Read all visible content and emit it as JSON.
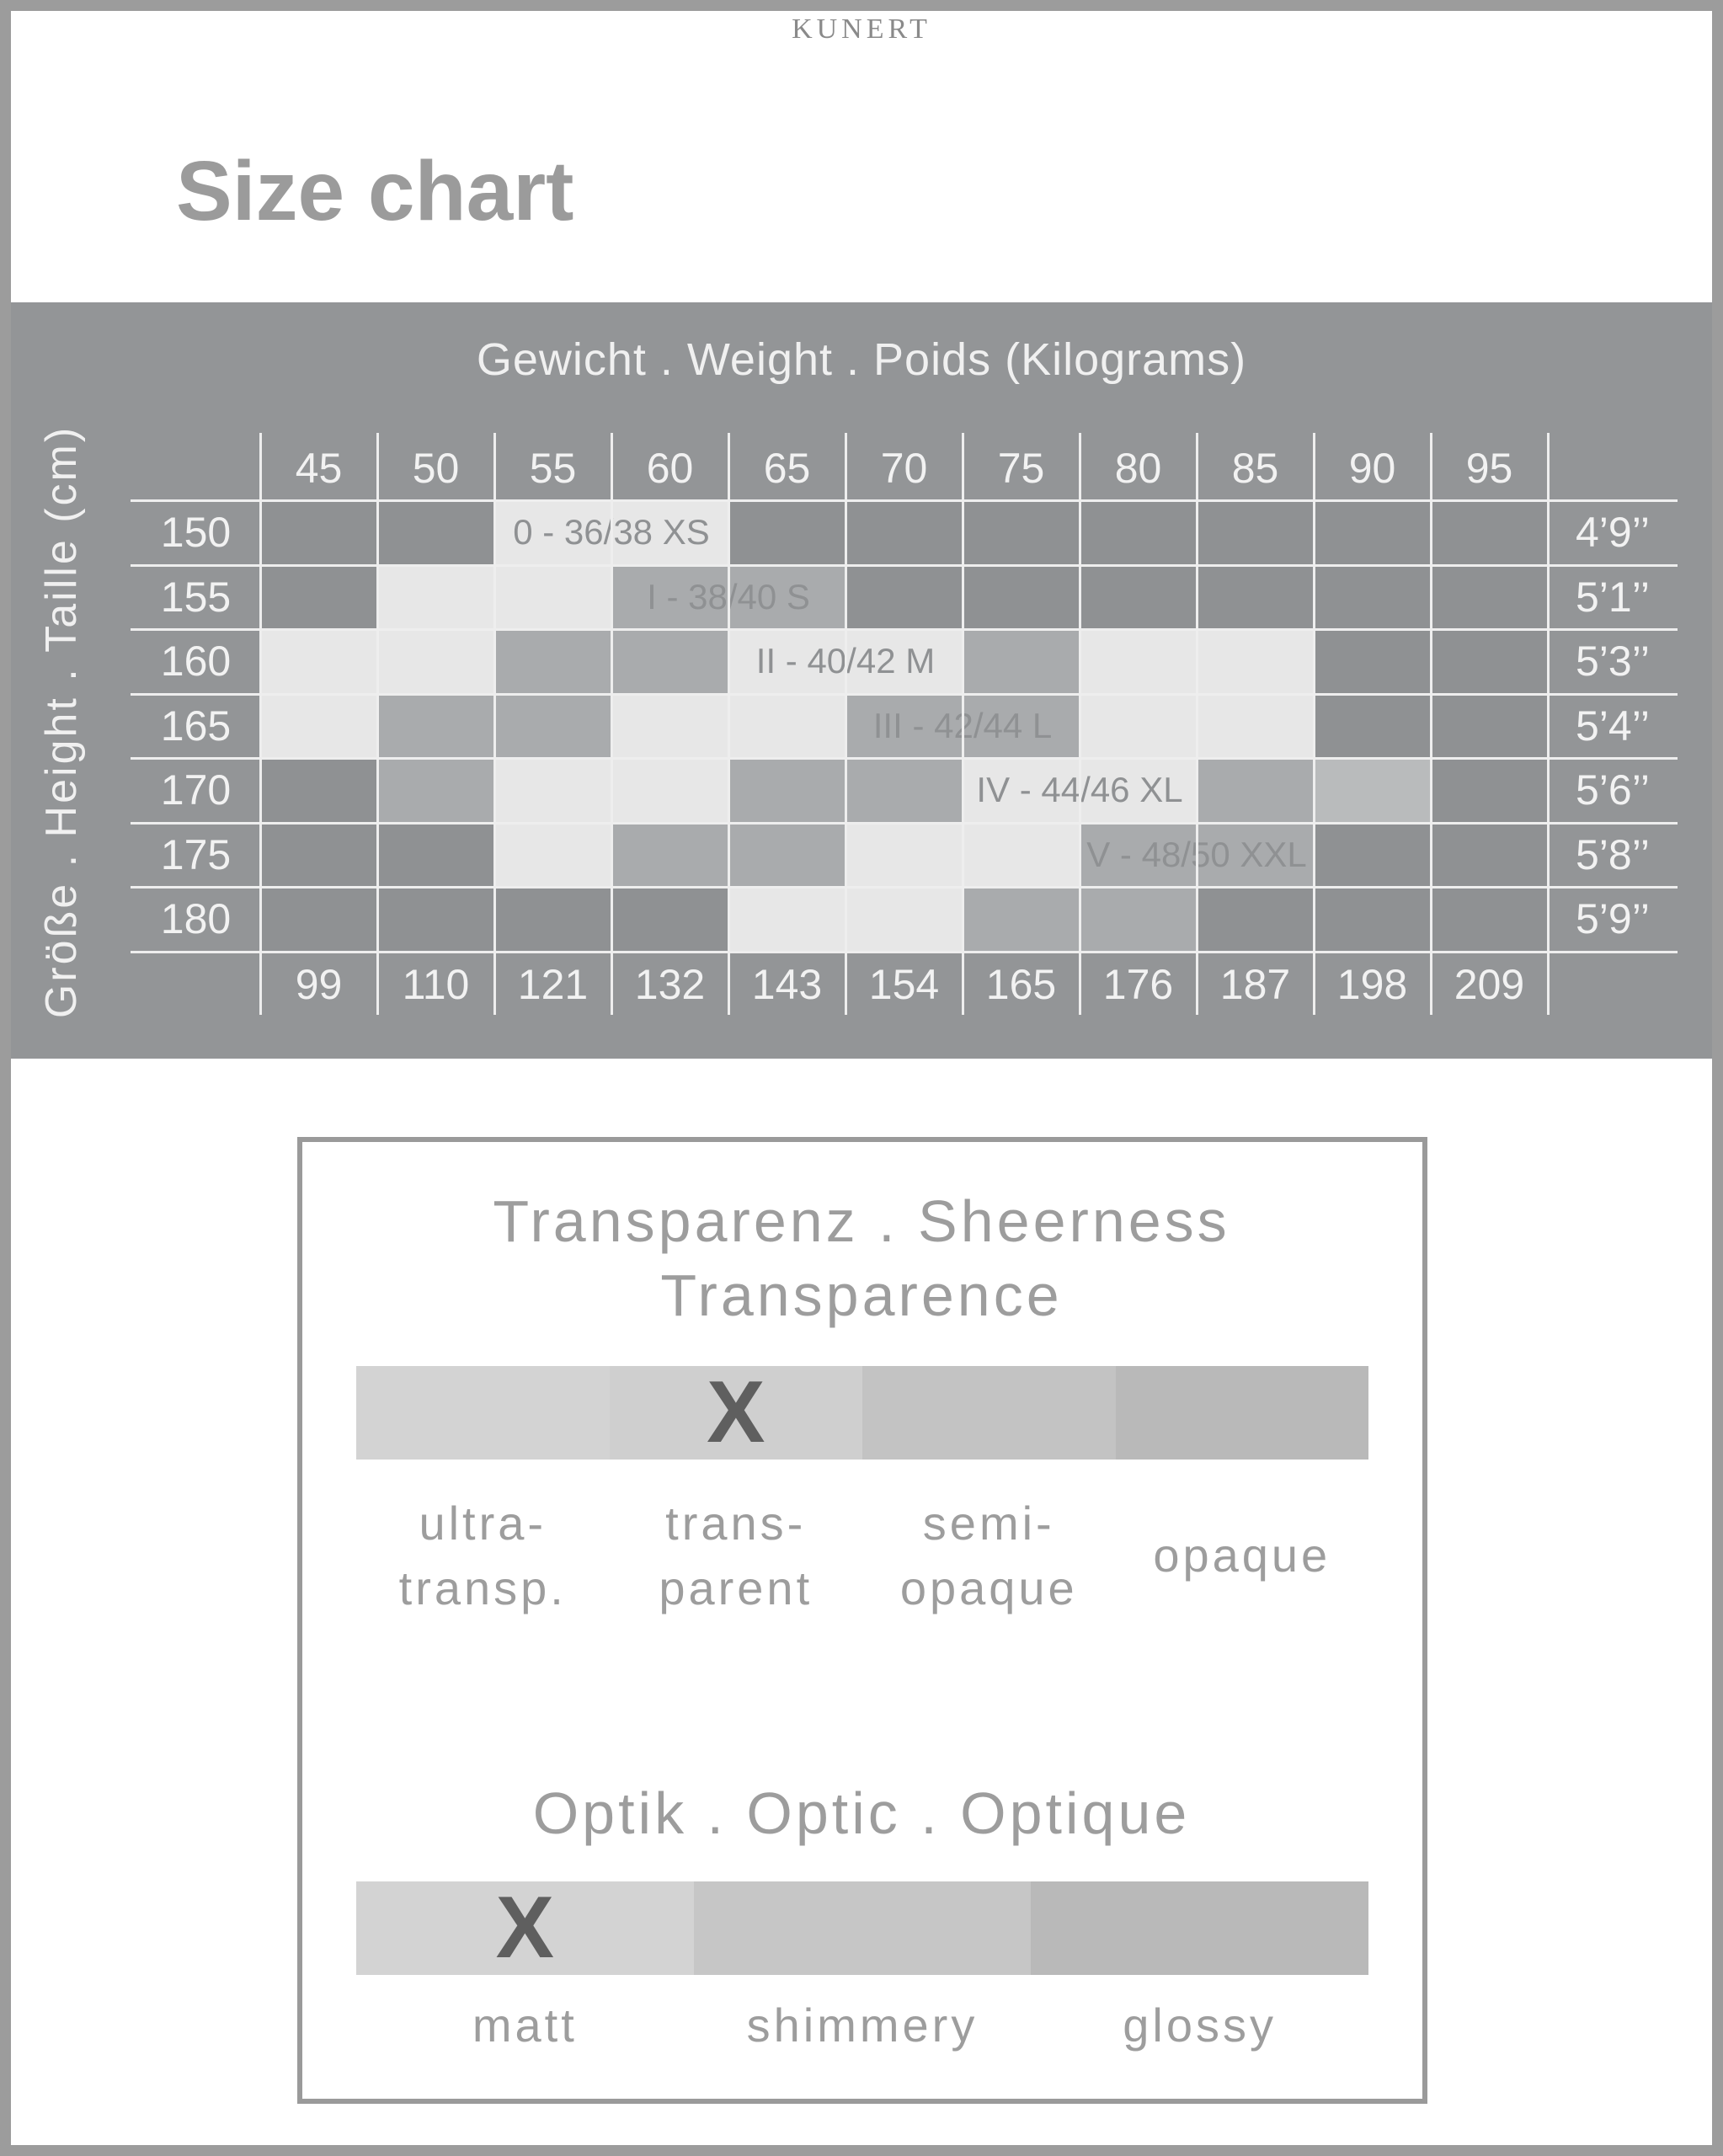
{
  "brand": "KUNERT",
  "title": "Size chart",
  "size_chart": {
    "weight_title": "Gewicht . Weight . Poids (Kilograms)",
    "height_title": "Größe . Height . Taille (cm)",
    "weights_kg": [
      "45",
      "50",
      "55",
      "60",
      "65",
      "70",
      "75",
      "80",
      "85",
      "90",
      "95"
    ],
    "weights_lb": [
      "99",
      "110",
      "121",
      "132",
      "143",
      "154",
      "165",
      "176",
      "187",
      "198",
      "209"
    ],
    "heights_cm": [
      "150",
      "155",
      "160",
      "165",
      "170",
      "175",
      "180"
    ],
    "heights_ft": [
      "4’9’’",
      "5’1’’",
      "5’3’’",
      "5’4’’",
      "5’6’’",
      "5’8’’",
      "5’9’’"
    ],
    "shade_colors": {
      "D": "#8f9193",
      "M": "#a9abad",
      "N": "#b9bbbc",
      "L": "#e7e7e7"
    },
    "shading": [
      [
        "D",
        "D",
        "L",
        "L",
        "D",
        "D",
        "D",
        "D",
        "D",
        "D",
        "D"
      ],
      [
        "D",
        "L",
        "L",
        "M",
        "M",
        "D",
        "D",
        "D",
        "D",
        "D",
        "D"
      ],
      [
        "L",
        "L",
        "M",
        "M",
        "L",
        "L",
        "M",
        "L",
        "L",
        "D",
        "D"
      ],
      [
        "L",
        "M",
        "M",
        "L",
        "L",
        "M",
        "M",
        "L",
        "L",
        "D",
        "D"
      ],
      [
        "D",
        "M",
        "L",
        "L",
        "M",
        "M",
        "L",
        "L",
        "M",
        "N",
        "D"
      ],
      [
        "D",
        "D",
        "L",
        "M",
        "M",
        "L",
        "L",
        "M",
        "M",
        "D",
        "D"
      ],
      [
        "D",
        "D",
        "D",
        "D",
        "L",
        "L",
        "M",
        "M",
        "D",
        "D",
        "D"
      ]
    ],
    "sizes": [
      {
        "label": "0 - 36/38 XS",
        "row": 0,
        "col": 2
      },
      {
        "label": "I - 38/40 S",
        "row": 1,
        "col": 3
      },
      {
        "label": "II - 40/42 M",
        "row": 2,
        "col": 4
      },
      {
        "label": "III - 42/44 L",
        "row": 3,
        "col": 5
      },
      {
        "label": "IV - 44/46 XL",
        "row": 4,
        "col": 6
      },
      {
        "label": "V - 48/50 XXL",
        "row": 5,
        "col": 7
      }
    ]
  },
  "sheerness": {
    "title_line1": "Transparenz . Sheerness",
    "title_line2": "Transparence",
    "selected_index": 1,
    "mark": "X",
    "options": [
      {
        "line1": "ultra-",
        "line2": "transp.",
        "color": "#d3d3d3"
      },
      {
        "line1": "trans-",
        "line2": "parent",
        "color": "#cfcfcf"
      },
      {
        "line1": "semi-",
        "line2": "opaque",
        "color": "#c3c3c3"
      },
      {
        "line1": "opaque",
        "line2": "",
        "color": "#b9b9b9"
      }
    ]
  },
  "optic": {
    "title": "Optik . Optic . Optique",
    "selected_index": 0,
    "mark": "X",
    "options": [
      {
        "label": "matt",
        "color": "#d3d3d3"
      },
      {
        "label": "shimmery",
        "color": "#c6c6c6"
      },
      {
        "label": "glossy",
        "color": "#b9b9b9"
      }
    ]
  }
}
